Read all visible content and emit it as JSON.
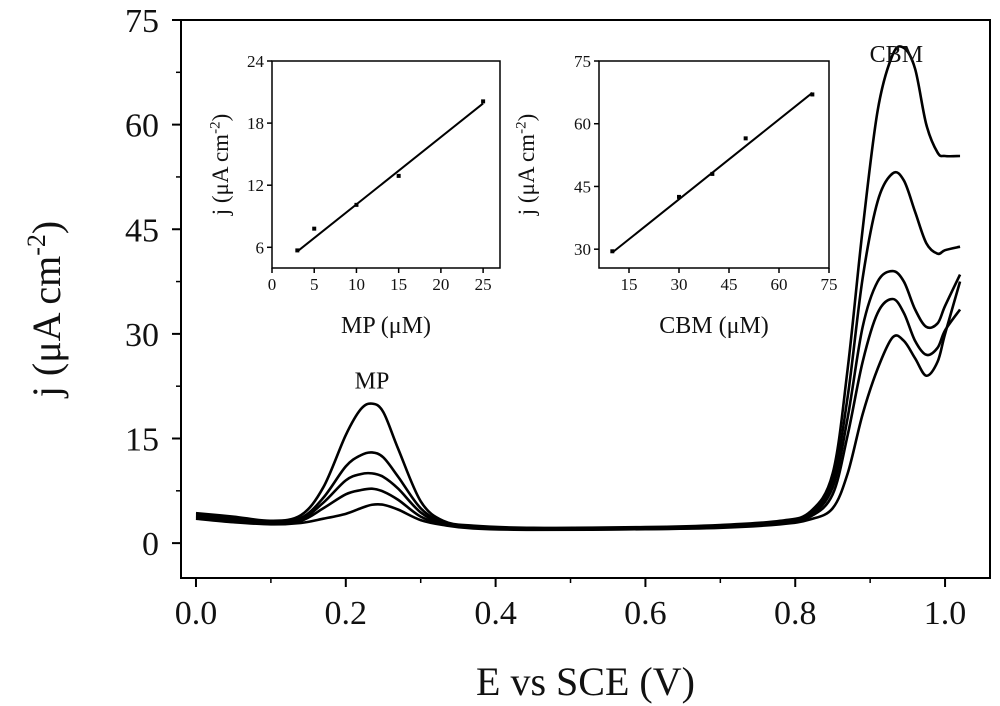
{
  "chart_data": [
    {
      "id": "main",
      "type": "line",
      "xlabel": "E vs SCE (V)",
      "ylabel_main": "j (μA cm",
      "ylabel_sup": "-2",
      "ylabel_close": ")",
      "xlim": [
        -0.02,
        1.06
      ],
      "ylim": [
        -5,
        75
      ],
      "xticks": [
        0.0,
        0.2,
        0.4,
        0.6,
        0.8,
        1.0
      ],
      "xtick_labels": [
        "0.0",
        "0.2",
        "0.4",
        "0.6",
        "0.8",
        "1.0"
      ],
      "yticks": [
        0,
        15,
        30,
        45,
        60,
        75
      ],
      "ytick_labels": [
        "0",
        "15",
        "30",
        "45",
        "60",
        "75"
      ],
      "annotations": [
        {
          "text": "MP",
          "x": 0.235,
          "y": 22.2
        },
        {
          "text": "CBM",
          "x": 0.935,
          "y": 69.0
        }
      ],
      "series": [
        {
          "x": [
            0.0,
            0.05,
            0.1,
            0.14,
            0.17,
            0.2,
            0.22,
            0.235,
            0.25,
            0.27,
            0.3,
            0.33,
            0.37,
            0.45,
            0.6,
            0.7,
            0.78,
            0.82,
            0.85,
            0.87,
            0.89,
            0.91,
            0.93,
            0.945,
            0.96,
            0.975,
            0.99,
            1.0,
            1.02
          ],
          "y": [
            4.3,
            3.8,
            3.2,
            4.0,
            8.0,
            15.5,
            19.2,
            20.0,
            18.8,
            13.5,
            6.0,
            3.2,
            2.5,
            2.2,
            2.3,
            2.6,
            3.2,
            4.5,
            10.0,
            25.0,
            45.0,
            62.0,
            70.0,
            71.0,
            68.0,
            60.0,
            56.0,
            55.5,
            55.5
          ]
        },
        {
          "x": [
            0.0,
            0.05,
            0.1,
            0.14,
            0.17,
            0.2,
            0.22,
            0.235,
            0.25,
            0.27,
            0.3,
            0.33,
            0.37,
            0.45,
            0.6,
            0.7,
            0.78,
            0.82,
            0.85,
            0.87,
            0.89,
            0.91,
            0.93,
            0.945,
            0.96,
            0.975,
            0.99,
            1.0,
            1.02
          ],
          "y": [
            4.0,
            3.5,
            3.0,
            3.6,
            6.5,
            11.0,
            12.6,
            13.0,
            12.3,
            9.5,
            5.0,
            3.0,
            2.4,
            2.1,
            2.2,
            2.5,
            3.1,
            4.2,
            9.0,
            21.0,
            38.0,
            49.0,
            53.0,
            52.0,
            47.5,
            43.0,
            41.5,
            42.0,
            42.5
          ]
        },
        {
          "x": [
            0.0,
            0.05,
            0.1,
            0.14,
            0.17,
            0.2,
            0.22,
            0.235,
            0.25,
            0.27,
            0.3,
            0.33,
            0.37,
            0.45,
            0.6,
            0.7,
            0.78,
            0.82,
            0.85,
            0.87,
            0.89,
            0.91,
            0.93,
            0.945,
            0.96,
            0.975,
            0.99,
            1.0,
            1.02
          ],
          "y": [
            3.8,
            3.3,
            2.9,
            3.4,
            5.8,
            9.0,
            9.9,
            10.0,
            9.5,
            7.8,
            4.4,
            2.8,
            2.3,
            2.0,
            2.1,
            2.4,
            3.0,
            4.0,
            8.0,
            18.0,
            31.0,
            37.5,
            39.0,
            37.5,
            33.5,
            31.0,
            31.5,
            34.0,
            38.5
          ]
        },
        {
          "x": [
            0.0,
            0.05,
            0.1,
            0.14,
            0.17,
            0.2,
            0.22,
            0.235,
            0.25,
            0.27,
            0.3,
            0.33,
            0.37,
            0.45,
            0.6,
            0.7,
            0.78,
            0.82,
            0.85,
            0.87,
            0.89,
            0.91,
            0.93,
            0.945,
            0.96,
            0.975,
            0.99,
            1.0,
            1.02
          ],
          "y": [
            3.6,
            3.1,
            2.8,
            3.2,
            5.0,
            7.0,
            7.6,
            7.8,
            7.4,
            6.2,
            3.8,
            2.7,
            2.2,
            2.0,
            2.0,
            2.3,
            2.9,
            3.8,
            7.0,
            15.5,
            26.0,
            33.0,
            35.0,
            33.0,
            29.0,
            27.0,
            28.0,
            30.5,
            33.5
          ]
        },
        {
          "x": [
            0.0,
            0.05,
            0.1,
            0.14,
            0.17,
            0.2,
            0.22,
            0.235,
            0.25,
            0.27,
            0.3,
            0.33,
            0.37,
            0.45,
            0.6,
            0.7,
            0.78,
            0.82,
            0.85,
            0.87,
            0.89,
            0.91,
            0.93,
            0.945,
            0.96,
            0.975,
            0.99,
            1.0,
            1.02
          ],
          "y": [
            3.5,
            3.0,
            2.7,
            2.9,
            3.5,
            4.2,
            5.0,
            5.5,
            5.5,
            4.8,
            3.3,
            2.6,
            2.1,
            1.9,
            2.0,
            2.2,
            2.7,
            3.4,
            5.0,
            10.0,
            18.5,
            25.0,
            29.5,
            29.0,
            26.5,
            24.0,
            26.0,
            30.0,
            37.5
          ]
        }
      ]
    },
    {
      "id": "inset-mp",
      "type": "scatter",
      "fit": "linear",
      "xlabel": "MP (μM)",
      "ylabel_main": "j (μA cm",
      "ylabel_sup": "-2",
      "ylabel_close": ")",
      "xlim": [
        0,
        27
      ],
      "ylim": [
        4,
        24
      ],
      "xticks": [
        0,
        5,
        10,
        15,
        20,
        25
      ],
      "xtick_labels": [
        "0",
        "5",
        "10",
        "15",
        "20",
        "25"
      ],
      "yticks": [
        6,
        12,
        18,
        24
      ],
      "ytick_labels": [
        "6",
        "12",
        "18",
        "24"
      ],
      "x": [
        3,
        5,
        10,
        15,
        25
      ],
      "y": [
        5.7,
        7.8,
        10.1,
        12.9,
        20.1
      ],
      "fit_line": {
        "x": [
          3,
          25
        ],
        "y": [
          5.6,
          19.9
        ]
      }
    },
    {
      "id": "inset-cbm",
      "type": "scatter",
      "fit": "linear",
      "xlabel": "CBM (μM)",
      "ylabel_main": "j (μA cm",
      "ylabel_sup": "-2",
      "ylabel_close": ")",
      "xlim": [
        6,
        75
      ],
      "ylim": [
        25.5,
        75
      ],
      "xticks": [
        15,
        30,
        45,
        60,
        75
      ],
      "xtick_labels": [
        "15",
        "30",
        "45",
        "60",
        "75"
      ],
      "yticks": [
        30,
        45,
        60,
        75
      ],
      "ytick_labels": [
        "30",
        "45",
        "60",
        "75"
      ],
      "x": [
        10,
        30,
        40,
        50,
        70
      ],
      "y": [
        29.5,
        42.5,
        48.0,
        56.5,
        67.0
      ],
      "fit_line": {
        "x": [
          10,
          70
        ],
        "y": [
          29.2,
          67.4
        ]
      }
    }
  ]
}
